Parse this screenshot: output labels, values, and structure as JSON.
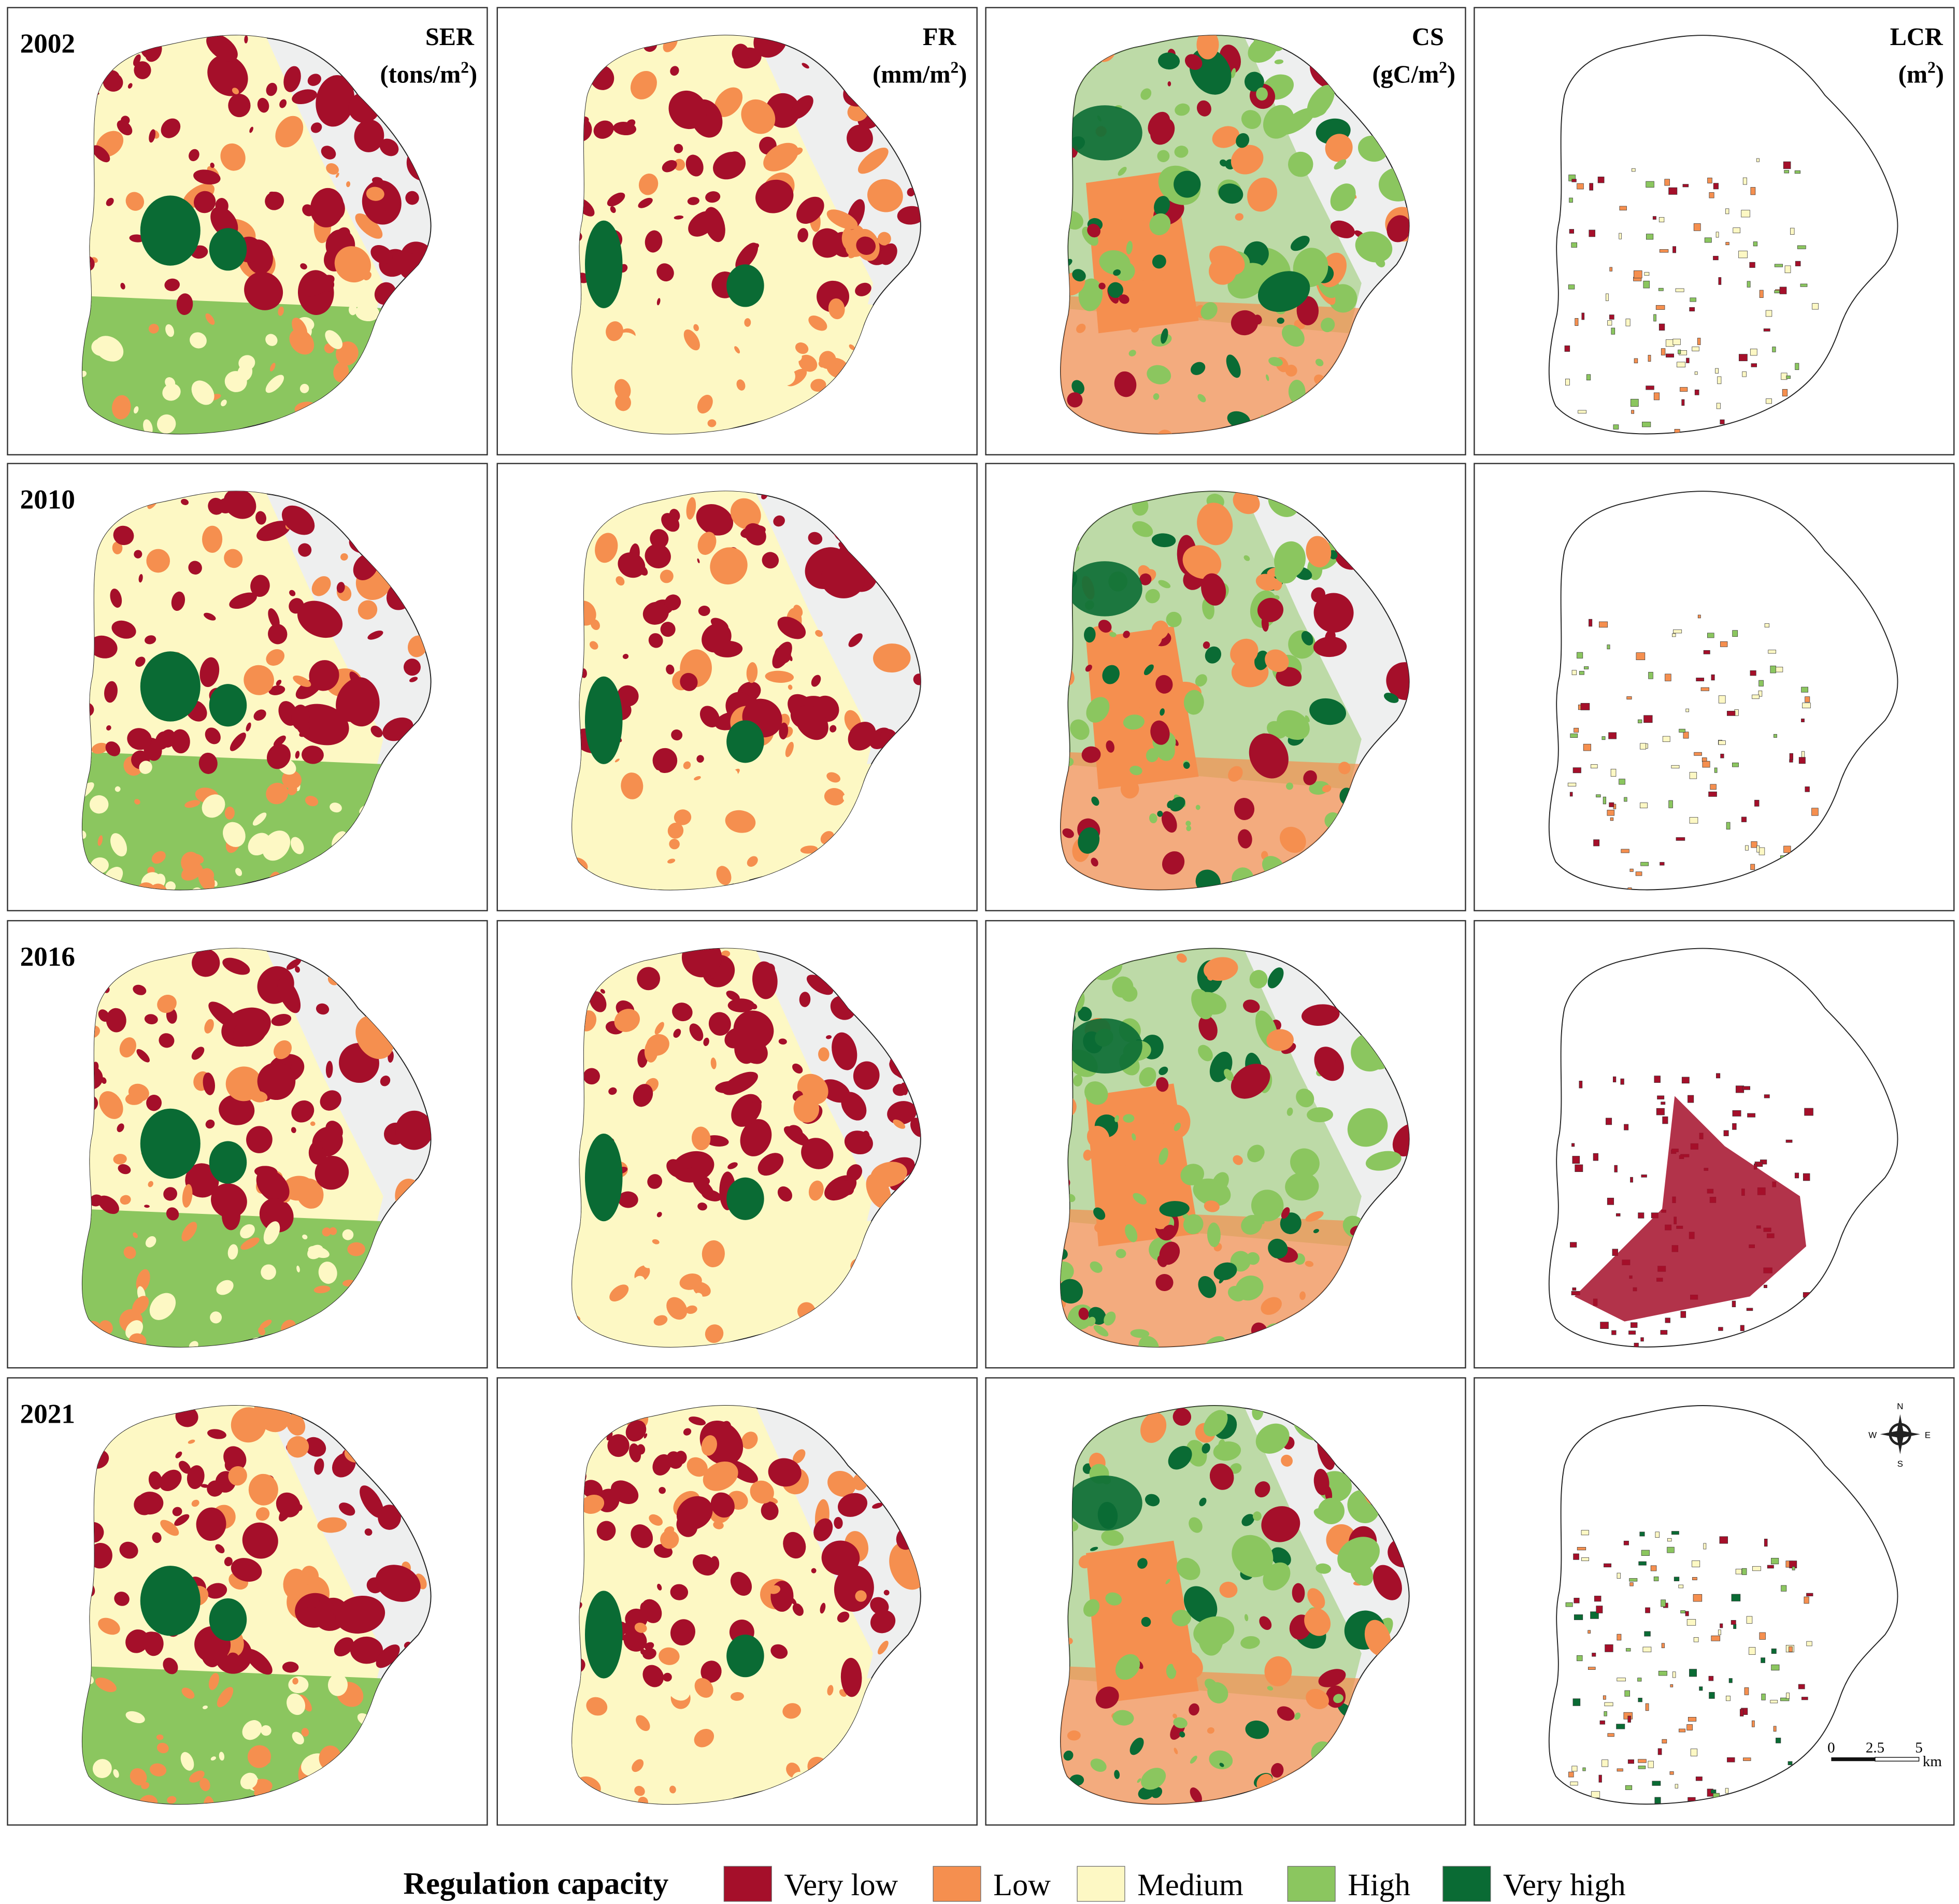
{
  "rows": [
    "2002",
    "2010",
    "2016",
    "2021"
  ],
  "columns": [
    {
      "name": "SER",
      "unit": [
        "(tons/m",
        "2",
        ")"
      ]
    },
    {
      "name": "FR",
      "unit": [
        "(mm/m",
        "2",
        ")"
      ]
    },
    {
      "name": "CS",
      "unit": [
        "(gC/m",
        "2",
        ")"
      ]
    },
    {
      "name": "LCR",
      "unit": [
        "(m",
        "2",
        ")"
      ]
    }
  ],
  "legend": {
    "title": "Regulation capacity",
    "items": [
      {
        "label": "Very low",
        "color": "#a50f2a"
      },
      {
        "label": "Low",
        "color": "#f58f4f"
      },
      {
        "label": "Medium",
        "color": "#fdf8c4"
      },
      {
        "label": "High",
        "color": "#8bc65f"
      },
      {
        "label": "Very high",
        "color": "#0a6b34"
      }
    ]
  },
  "compass": {
    "n": "N",
    "s": "S",
    "e": "E",
    "w": "W"
  },
  "scale_bar": {
    "ticks": [
      "0",
      "2.5",
      "5"
    ],
    "unit": "km"
  }
}
